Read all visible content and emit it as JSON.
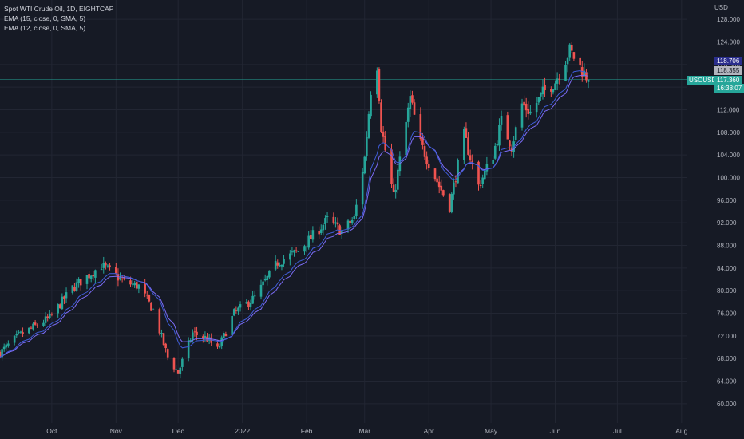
{
  "legend": {
    "symbol_line": "Spot WTI Crude Oil, 1D, EIGHTCAP",
    "ema15_line": "EMA (15, close, 0, SMA, 5)",
    "ema12_line": "EMA (12, close, 0, SMA, 5)"
  },
  "price_axis": {
    "unit": "USD",
    "ticks": [
      "128.000",
      "124.000",
      "120.000",
      "116.000",
      "112.000",
      "108.000",
      "104.000",
      "100.000",
      "96.000",
      "92.000",
      "88.000",
      "84.000",
      "80.000",
      "76.000",
      "72.000",
      "68.000",
      "64.000",
      "60.000"
    ]
  },
  "time_axis": {
    "ticks": [
      "Oct",
      "Nov",
      "Dec",
      "2022",
      "Feb",
      "Mar",
      "Apr",
      "May",
      "Jun",
      "Jul",
      "Aug"
    ]
  },
  "price_tags": {
    "high_value": "118.706",
    "mid_value": "118.355",
    "symbol": "USOUSD",
    "last_value": "117.360",
    "countdown": "16:38:07"
  },
  "colors": {
    "background": "#161a25",
    "grid": "#222633",
    "up": "#26a69a",
    "down": "#ef5350",
    "ema15": "#7b6cf6",
    "ema12": "#3f5cd8",
    "text": "#b2b5be"
  },
  "chart_data": {
    "type": "candlestick",
    "title": "Spot WTI Crude Oil, 1D, EIGHTCAP",
    "ylabel": "USD",
    "ylim": [
      58,
      130
    ],
    "x_range": [
      "2021-09-06",
      "2022-08-08"
    ],
    "grid": true,
    "legend_position": "top-left",
    "last_price": 117.36,
    "anchors": [
      {
        "date": "2021-09-06",
        "close": 69.0
      },
      {
        "date": "2021-09-15",
        "close": 72.0
      },
      {
        "date": "2021-09-30",
        "close": 75.2
      },
      {
        "date": "2021-10-11",
        "close": 80.5
      },
      {
        "date": "2021-10-25",
        "close": 84.5
      },
      {
        "date": "2021-10-29",
        "close": 83.5
      },
      {
        "date": "2021-11-05",
        "close": 81.5
      },
      {
        "date": "2021-11-12",
        "close": 80.8
      },
      {
        "date": "2021-11-19",
        "close": 76.5
      },
      {
        "date": "2021-11-26",
        "close": 68.2
      },
      {
        "date": "2021-12-01",
        "close": 65.5
      },
      {
        "date": "2021-12-08",
        "close": 72.5
      },
      {
        "date": "2021-12-15",
        "close": 71.5
      },
      {
        "date": "2021-12-20",
        "close": 69.5
      },
      {
        "date": "2021-12-28",
        "close": 76.0
      },
      {
        "date": "2022-01-07",
        "close": 78.8
      },
      {
        "date": "2022-01-18",
        "close": 85.0
      },
      {
        "date": "2022-01-28",
        "close": 87.0
      },
      {
        "date": "2022-02-11",
        "close": 92.5
      },
      {
        "date": "2022-02-18",
        "close": 90.5
      },
      {
        "date": "2022-02-24",
        "close": 92.8
      },
      {
        "date": "2022-03-01",
        "close": 103.5
      },
      {
        "date": "2022-03-04",
        "close": 115.5
      },
      {
        "date": "2022-03-07",
        "close": 120.0
      },
      {
        "date": "2022-03-09",
        "close": 109.0
      },
      {
        "date": "2022-03-15",
        "close": 96.5
      },
      {
        "date": "2022-03-23",
        "close": 114.0
      },
      {
        "date": "2022-03-28",
        "close": 106.0
      },
      {
        "date": "2022-04-06",
        "close": 98.5
      },
      {
        "date": "2022-04-11",
        "close": 95.0
      },
      {
        "date": "2022-04-18",
        "close": 107.5
      },
      {
        "date": "2022-04-25",
        "close": 98.5
      },
      {
        "date": "2022-05-02",
        "close": 104.0
      },
      {
        "date": "2022-05-06",
        "close": 110.0
      },
      {
        "date": "2022-05-11",
        "close": 105.5
      },
      {
        "date": "2022-05-16",
        "close": 113.0
      },
      {
        "date": "2022-05-20",
        "close": 111.5
      },
      {
        "date": "2022-05-26",
        "close": 115.0
      },
      {
        "date": "2022-06-01",
        "close": 117.0
      },
      {
        "date": "2022-06-08",
        "close": 122.5
      },
      {
        "date": "2022-06-13",
        "close": 119.5
      },
      {
        "date": "2022-06-17",
        "close": 117.36
      }
    ]
  }
}
